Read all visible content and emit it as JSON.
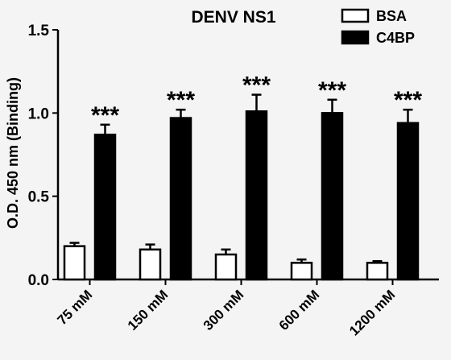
{
  "chart_data": {
    "type": "bar",
    "title": "DENV NS1",
    "xlabel": "",
    "ylabel": "O.D. 450 nm (Binding)",
    "ylim": [
      0,
      1.5
    ],
    "yticks": [
      "0.0",
      "0.5",
      "1.0",
      "1.5"
    ],
    "categories": [
      "75 mM",
      "150 mM",
      "300 mM",
      "600 mM",
      "1200 mM"
    ],
    "series": [
      {
        "name": "BSA",
        "fill": "#ffffff",
        "values": [
          0.2,
          0.18,
          0.15,
          0.1,
          0.1
        ],
        "errors": [
          0.02,
          0.03,
          0.03,
          0.02,
          0.01
        ]
      },
      {
        "name": "C4BP",
        "fill": "#000000",
        "values": [
          0.87,
          0.97,
          1.01,
          1.0,
          0.94
        ],
        "errors": [
          0.06,
          0.05,
          0.1,
          0.08,
          0.08
        ]
      }
    ],
    "annotations": [
      "***",
      "***",
      "***",
      "***",
      "***"
    ],
    "legend_position": "top-right",
    "grid": false
  }
}
